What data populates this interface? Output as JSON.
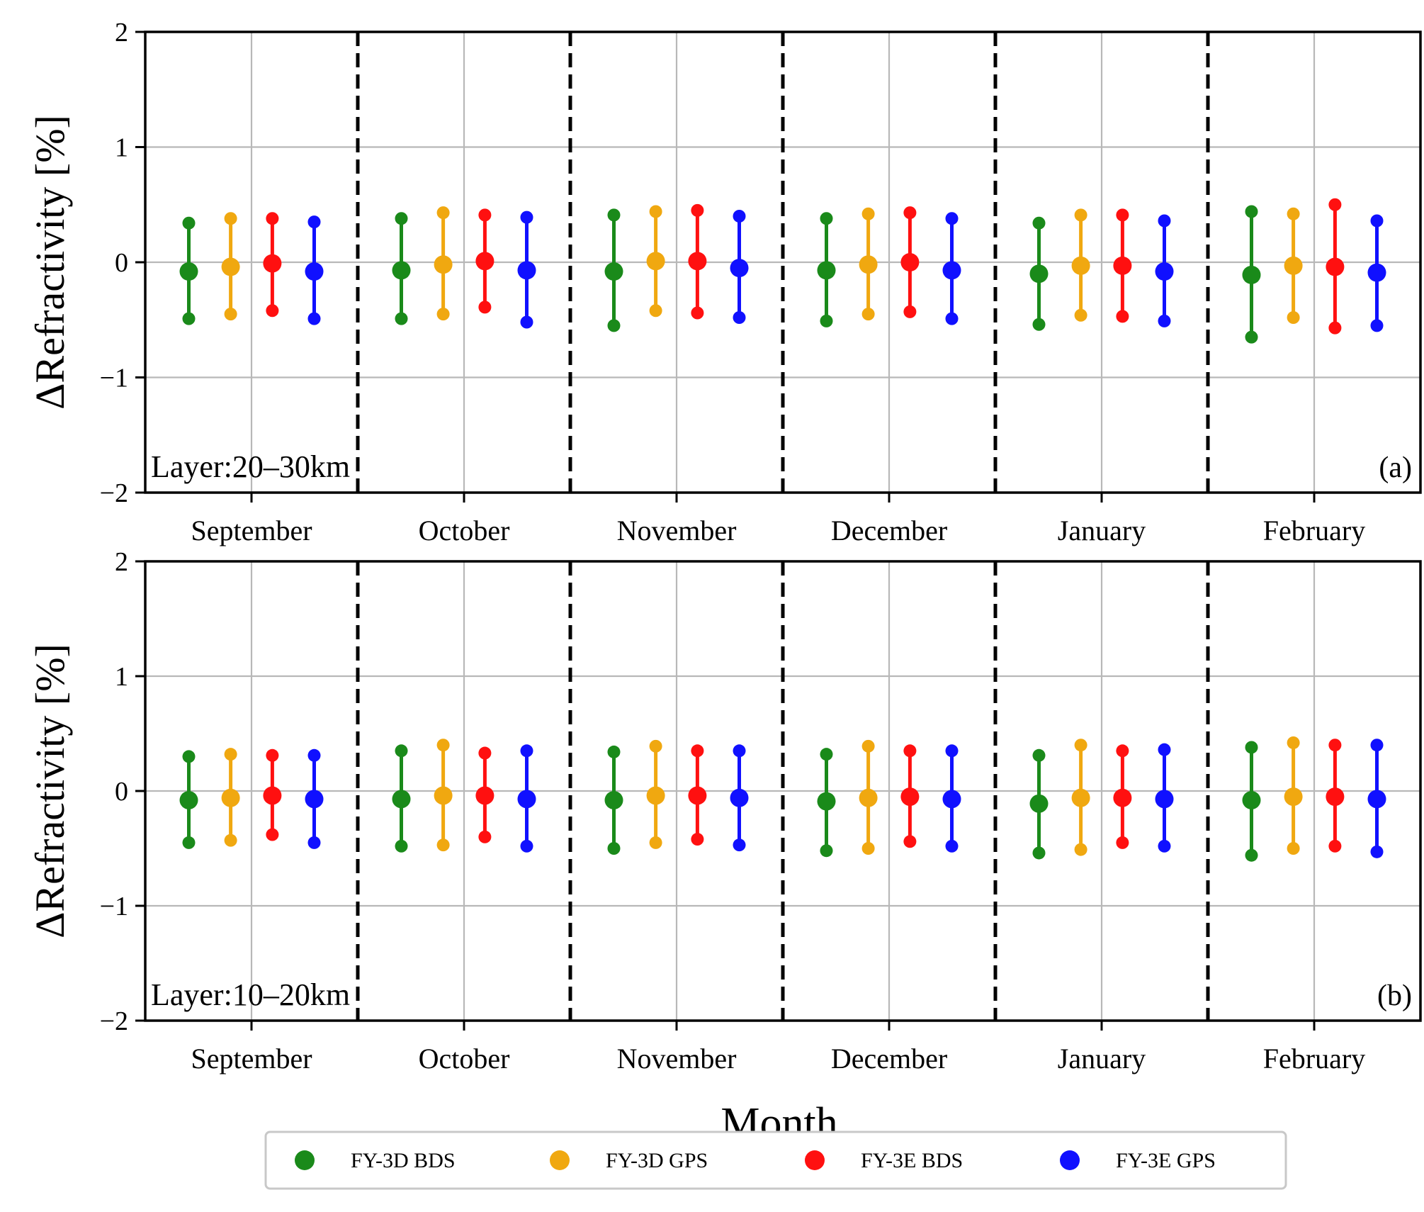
{
  "chart_data": [
    {
      "type": "errorbar",
      "panel_label": "(a)",
      "layer_label": "Layer:20–30km",
      "ylabel": "ΔRefractivity [%]",
      "xlabel": "",
      "ylim": [
        -2,
        2
      ],
      "yticks": [
        "2",
        "1",
        "0",
        "−1",
        "−2"
      ],
      "categories": [
        "September",
        "October",
        "November",
        "December",
        "January",
        "February"
      ],
      "series": [
        {
          "name": "FY-3D BDS",
          "color": "#1a8a1a",
          "mean": [
            -0.08,
            -0.07,
            -0.08,
            -0.07,
            -0.1,
            -0.11
          ],
          "upper": [
            0.34,
            0.38,
            0.41,
            0.38,
            0.34,
            0.44
          ],
          "lower": [
            -0.49,
            -0.49,
            -0.55,
            -0.51,
            -0.54,
            -0.65
          ]
        },
        {
          "name": "FY-3D GPS",
          "color": "#f0a810",
          "mean": [
            -0.04,
            -0.02,
            0.01,
            -0.02,
            -0.03,
            -0.03
          ],
          "upper": [
            0.38,
            0.43,
            0.44,
            0.42,
            0.41,
            0.42
          ],
          "lower": [
            -0.45,
            -0.45,
            -0.42,
            -0.45,
            -0.46,
            -0.48
          ]
        },
        {
          "name": "FY-3E BDS",
          "color": "#ff1010",
          "mean": [
            -0.01,
            0.01,
            0.01,
            0.0,
            -0.03,
            -0.04
          ],
          "upper": [
            0.38,
            0.41,
            0.45,
            0.43,
            0.41,
            0.5
          ],
          "lower": [
            -0.42,
            -0.39,
            -0.44,
            -0.43,
            -0.47,
            -0.57
          ]
        },
        {
          "name": "FY-3E GPS",
          "color": "#1010ff",
          "mean": [
            -0.08,
            -0.07,
            -0.05,
            -0.07,
            -0.08,
            -0.09
          ],
          "upper": [
            0.35,
            0.39,
            0.4,
            0.38,
            0.36,
            0.36
          ],
          "lower": [
            -0.49,
            -0.52,
            -0.48,
            -0.49,
            -0.51,
            -0.55
          ]
        }
      ]
    },
    {
      "type": "errorbar",
      "panel_label": "(b)",
      "layer_label": "Layer:10–20km",
      "ylabel": "ΔRefractivity [%]",
      "xlabel": "Month",
      "ylim": [
        -2,
        2
      ],
      "yticks": [
        "2",
        "1",
        "0",
        "−1",
        "−2"
      ],
      "categories": [
        "September",
        "October",
        "November",
        "December",
        "January",
        "February"
      ],
      "series": [
        {
          "name": "FY-3D BDS",
          "color": "#1a8a1a",
          "mean": [
            -0.08,
            -0.07,
            -0.08,
            -0.09,
            -0.11,
            -0.08
          ],
          "upper": [
            0.3,
            0.35,
            0.34,
            0.32,
            0.31,
            0.38
          ],
          "lower": [
            -0.45,
            -0.48,
            -0.5,
            -0.52,
            -0.54,
            -0.56
          ]
        },
        {
          "name": "FY-3D GPS",
          "color": "#f0a810",
          "mean": [
            -0.06,
            -0.04,
            -0.04,
            -0.06,
            -0.06,
            -0.05
          ],
          "upper": [
            0.32,
            0.4,
            0.39,
            0.39,
            0.4,
            0.42
          ],
          "lower": [
            -0.43,
            -0.47,
            -0.45,
            -0.5,
            -0.51,
            -0.5
          ]
        },
        {
          "name": "FY-3E BDS",
          "color": "#ff1010",
          "mean": [
            -0.04,
            -0.04,
            -0.04,
            -0.05,
            -0.06,
            -0.05
          ],
          "upper": [
            0.31,
            0.33,
            0.35,
            0.35,
            0.35,
            0.4
          ],
          "lower": [
            -0.38,
            -0.4,
            -0.42,
            -0.44,
            -0.45,
            -0.48
          ]
        },
        {
          "name": "FY-3E GPS",
          "color": "#1010ff",
          "mean": [
            -0.07,
            -0.07,
            -0.06,
            -0.07,
            -0.07,
            -0.07
          ],
          "upper": [
            0.31,
            0.35,
            0.35,
            0.35,
            0.36,
            0.4
          ],
          "lower": [
            -0.45,
            -0.48,
            -0.47,
            -0.48,
            -0.48,
            -0.53
          ]
        }
      ]
    }
  ],
  "legend": {
    "position": "bottom-center",
    "entries": [
      {
        "label": "FY-3D BDS",
        "color": "#1a8a1a"
      },
      {
        "label": "FY-3D GPS",
        "color": "#f0a810"
      },
      {
        "label": "FY-3E BDS",
        "color": "#ff1010"
      },
      {
        "label": "FY-3E GPS",
        "color": "#1010ff"
      }
    ]
  }
}
